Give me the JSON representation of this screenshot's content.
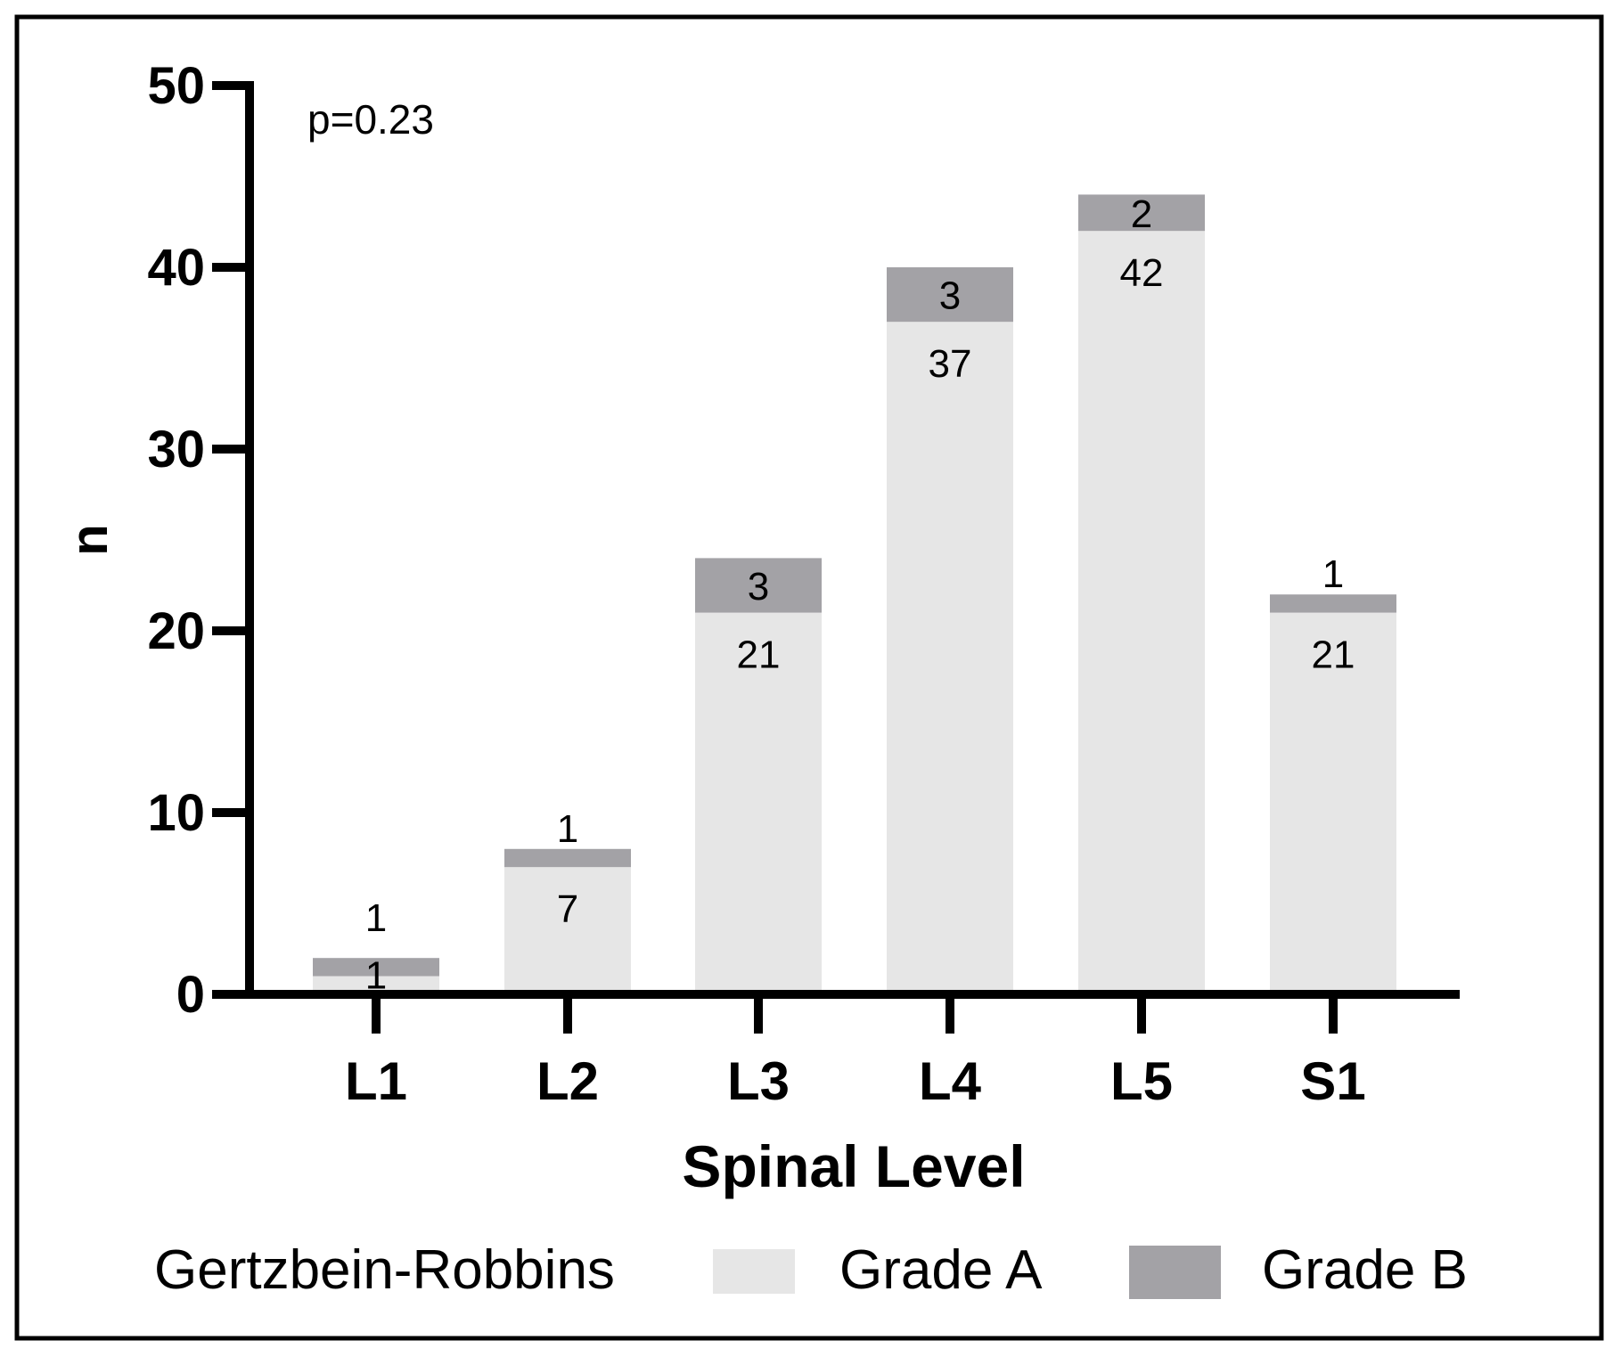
{
  "chart_data": {
    "type": "bar",
    "stacked": true,
    "title": "",
    "xlabel": "Spinal Level",
    "ylabel": "n",
    "ylim": [
      0,
      50
    ],
    "yticks": [
      "0",
      "10",
      "20",
      "30",
      "40",
      "50"
    ],
    "categories": [
      "L1",
      "L2",
      "L3",
      "L4",
      "L5",
      "S1"
    ],
    "series": [
      {
        "name": "Grade A",
        "values": [
          1,
          7,
          21,
          37,
          42,
          21
        ],
        "color": "#e6e6e6"
      },
      {
        "name": "Grade B",
        "values": [
          1,
          1,
          3,
          3,
          2,
          1
        ],
        "color": "#a3a2a6"
      }
    ],
    "annotation": "p=0.23",
    "legend_title": "Gertzbein-Robbins",
    "legend_position": "bottom",
    "grid": false
  }
}
